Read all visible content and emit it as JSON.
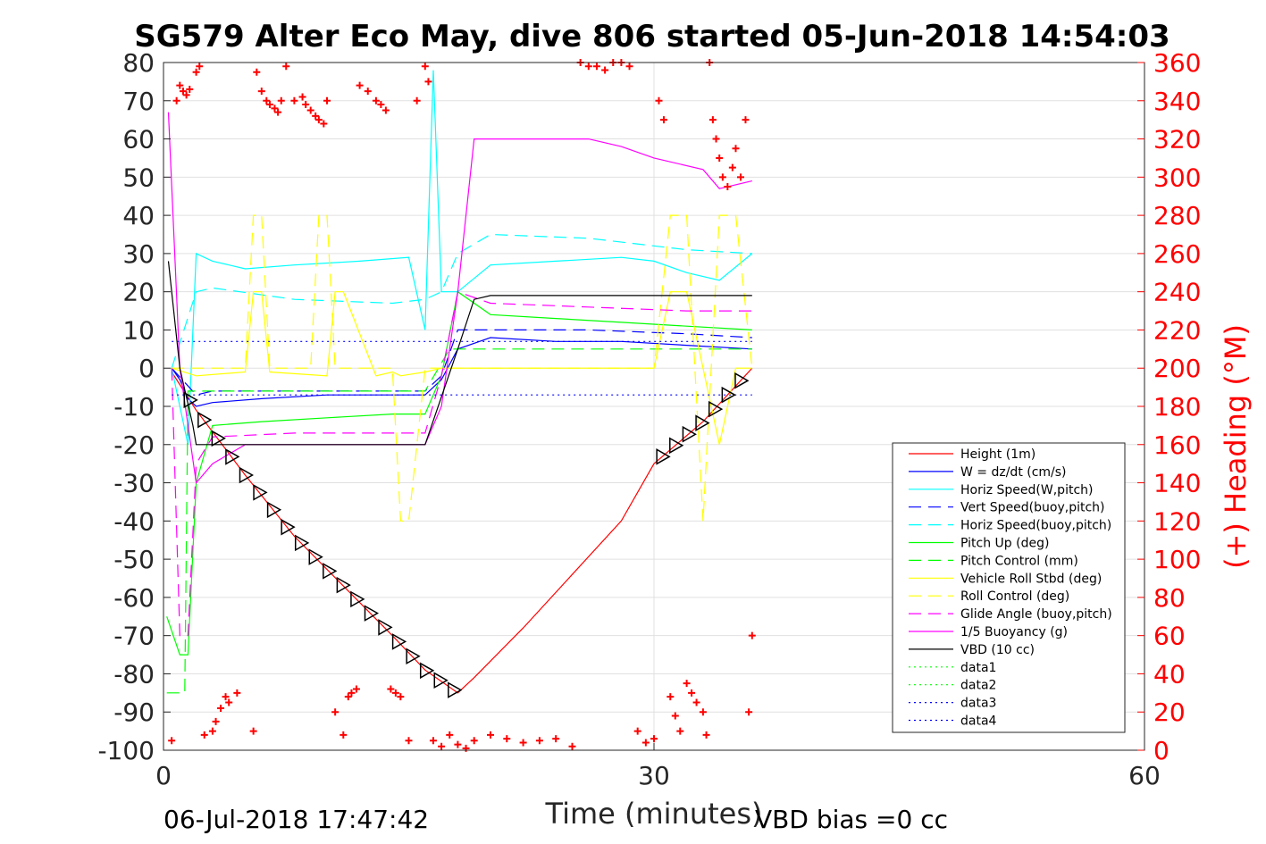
{
  "chart_data": {
    "type": "line",
    "title": "SG579 Alter Eco May, dive 806 started 05-Jun-2018 14:54:03",
    "xlabel": "Time (minutes)",
    "ylabel_right": "(+) Heading (°M)",
    "xlim": [
      0,
      60
    ],
    "ylim": [
      -100,
      80
    ],
    "ylim_right": [
      0,
      360
    ],
    "x_ticks": [
      "0",
      "30",
      "60"
    ],
    "y_ticks": [
      "80",
      "70",
      "60",
      "50",
      "40",
      "30",
      "20",
      "10",
      "0",
      "-10",
      "-20",
      "-30",
      "-40",
      "-50",
      "-60",
      "-70",
      "-80",
      "-90",
      "-100"
    ],
    "y_ticks_right": [
      "360",
      "340",
      "320",
      "300",
      "280",
      "260",
      "240",
      "220",
      "200",
      "180",
      "160",
      "140",
      "120",
      "100",
      "80",
      "60",
      "40",
      "20",
      "0"
    ],
    "grid": true,
    "legend_position": "lower-right",
    "footer_left": "06-Jul-2018 17:47:42",
    "footer_right": "VBD bias =0 cc",
    "series": [
      {
        "name": "Height (1m)",
        "color": "#ff0000",
        "style": "solid",
        "x": [
          0.5,
          2,
          5,
          8,
          11,
          14,
          16,
          18,
          19,
          22,
          25,
          28,
          30,
          33,
          36
        ],
        "y": [
          -1,
          -11,
          -28,
          -44,
          -57,
          -70,
          -79,
          -85,
          -81,
          -68,
          -54,
          -40,
          -25,
          -14,
          0
        ]
      },
      {
        "name": "W = dz/dt (cm/s)",
        "color": "#0000ff",
        "style": "solid",
        "x": [
          0.5,
          1,
          1.5,
          2,
          3,
          6,
          10,
          14,
          16,
          17,
          18,
          20,
          24,
          28,
          32,
          36
        ],
        "y": [
          0,
          -3,
          -8,
          -10,
          -9,
          -8,
          -7,
          -7,
          -7,
          -3,
          5,
          8,
          7,
          7,
          6,
          5
        ]
      },
      {
        "name": "Horiz Speed(W,pitch)",
        "color": "#00ffff",
        "style": "solid",
        "x": [
          0.5,
          1.5,
          2,
          3,
          5,
          8,
          12,
          15,
          16,
          16.5,
          17,
          18,
          20,
          24,
          28,
          30,
          32,
          34,
          36
        ],
        "y": [
          0,
          -20,
          30,
          28,
          26,
          27,
          28,
          29,
          10,
          78,
          20,
          20,
          27,
          28,
          29,
          28,
          25,
          23,
          30
        ]
      },
      {
        "name": "Vert Speed(buoy,pitch)",
        "color": "#0000ff",
        "style": "dash",
        "x": [
          0.5,
          2,
          3,
          8,
          14,
          16,
          17,
          18,
          20,
          26,
          32,
          36
        ],
        "y": [
          0,
          -7,
          -6,
          -6,
          -6,
          -6,
          -2,
          10,
          10,
          10,
          9,
          8
        ]
      },
      {
        "name": "Horiz Speed(buoy,pitch)",
        "color": "#00ffff",
        "style": "dash",
        "x": [
          0.5,
          2,
          3,
          8,
          14,
          16,
          17,
          18,
          20,
          26,
          32,
          36
        ],
        "y": [
          0,
          20,
          21,
          18,
          17,
          18,
          20,
          30,
          35,
          34,
          31,
          30
        ]
      },
      {
        "name": "Pitch Up (deg)",
        "color": "#00ff00",
        "style": "solid",
        "x": [
          0.2,
          1,
          1.5,
          2,
          3,
          6,
          10,
          14,
          16,
          17,
          18,
          20,
          24,
          28,
          32,
          36
        ],
        "y": [
          -65,
          -75,
          -75,
          -30,
          -15,
          -14,
          -13,
          -12,
          -12,
          -2,
          20,
          14,
          13,
          12,
          11,
          10
        ]
      },
      {
        "name": "Pitch Control (mm)",
        "color": "#00ff00",
        "style": "dash",
        "x": [
          0.2,
          1.3,
          1.5,
          2,
          16,
          17.5,
          18,
          36
        ],
        "y": [
          -85,
          -85,
          -6,
          -6,
          -6,
          5,
          5,
          5
        ]
      },
      {
        "name": "Vehicle Roll Stbd (deg)",
        "color": "#ffff00",
        "style": "solid",
        "x": [
          0.5,
          2,
          5,
          5.5,
          6,
          6.5,
          10,
          10.5,
          11,
          13,
          14,
          14.5,
          16,
          17,
          18,
          30,
          31,
          32,
          33,
          34,
          35,
          36
        ],
        "y": [
          0,
          -2,
          -1,
          20,
          20,
          -1,
          -2,
          20,
          20,
          -2,
          -1,
          -2,
          -1,
          0,
          0,
          0,
          20,
          20,
          0,
          -20,
          0,
          0
        ]
      },
      {
        "name": "Roll Control (deg)",
        "color": "#ffff00",
        "style": "dash",
        "x": [
          0.5,
          2,
          5,
          5.5,
          6,
          6.5,
          9,
          9.5,
          10,
          10.5,
          14,
          14.5,
          15,
          16,
          17,
          18,
          30,
          31,
          32,
          33,
          34,
          35,
          36
        ],
        "y": [
          0,
          0,
          0,
          40,
          40,
          0,
          0,
          40,
          40,
          0,
          0,
          -40,
          -40,
          0,
          0,
          0,
          0,
          40,
          40,
          -40,
          40,
          40,
          0
        ]
      },
      {
        "name": "Glide Angle (buoy,pitch)",
        "color": "#ff00ff",
        "style": "dash",
        "x": [
          0.5,
          1,
          1.5,
          2,
          3,
          8,
          14,
          16,
          17,
          18,
          20,
          26,
          32,
          36
        ],
        "y": [
          0,
          -70,
          -70,
          -25,
          -18,
          -17,
          -17,
          -17,
          -2,
          20,
          17,
          16,
          15,
          15
        ]
      },
      {
        "name": "1/5 Buoyancy (g)",
        "color": "#ff00ff",
        "style": "solid",
        "x": [
          0.3,
          1,
          2,
          3,
          5,
          10,
          16,
          17,
          18,
          19,
          20,
          26,
          28,
          30,
          33,
          34,
          36
        ],
        "y": [
          67,
          0,
          -30,
          -25,
          -20,
          -20,
          -20,
          -10,
          20,
          60,
          60,
          60,
          58,
          55,
          52,
          47,
          49
        ]
      },
      {
        "name": "VBD (10 cc)",
        "color": "#000000",
        "style": "solid",
        "x": [
          0.3,
          1,
          1.8,
          2,
          16,
          18,
          19,
          20,
          36
        ],
        "y": [
          28,
          0,
          -15,
          -20,
          -20,
          5,
          18,
          19,
          19
        ]
      },
      {
        "name": "data1",
        "color": "#00ff00",
        "style": "dot",
        "x": [],
        "y": []
      },
      {
        "name": "data2",
        "color": "#00ff00",
        "style": "dot",
        "x": [],
        "y": []
      },
      {
        "name": "data3",
        "color": "#0000ff",
        "style": "dot",
        "x": [
          0.5,
          36
        ],
        "y": [
          7,
          7
        ]
      },
      {
        "name": "data4",
        "color": "#0000ff",
        "style": "dot",
        "x": [
          0.5,
          36
        ],
        "y": [
          -7,
          -7
        ]
      }
    ],
    "heading_points": {
      "color": "#ff0000",
      "marker": "+",
      "axis": "right",
      "x": [
        0.5,
        0.8,
        1.0,
        1.2,
        1.4,
        1.6,
        2.0,
        2.2,
        2.5,
        3.0,
        3.2,
        3.5,
        3.8,
        4.0,
        4.5,
        5.5,
        5.7,
        6.0,
        6.3,
        6.5,
        6.8,
        7.0,
        7.2,
        7.5,
        8.0,
        8.5,
        8.7,
        9.0,
        9.3,
        9.5,
        9.8,
        10.0,
        10.5,
        11.0,
        11.3,
        11.5,
        11.8,
        12.0,
        12.5,
        13.0,
        13.3,
        13.6,
        13.9,
        14.2,
        14.5,
        15.0,
        15.5,
        16.0,
        16.2,
        16.5,
        17.0,
        17.5,
        18.0,
        18.5,
        19.0,
        20.0,
        21.0,
        22.0,
        23.0,
        24.0,
        25.0,
        25.5,
        26.0,
        26.5,
        27.0,
        27.5,
        28.0,
        28.5,
        29.0,
        29.5,
        30.0,
        30.3,
        30.6,
        31.0,
        31.3,
        31.6,
        32.0,
        32.3,
        32.6,
        33.0,
        33.2,
        33.4,
        33.6,
        33.8,
        34.0,
        34.2,
        34.5,
        34.8,
        35.0,
        35.3,
        35.6,
        35.8,
        36.0
      ],
      "y": [
        5,
        340,
        348,
        345,
        343,
        346,
        355,
        358,
        8,
        10,
        15,
        22,
        28,
        25,
        30,
        10,
        355,
        345,
        340,
        338,
        336,
        334,
        340,
        358,
        340,
        342,
        338,
        335,
        332,
        330,
        328,
        340,
        20,
        8,
        28,
        30,
        32,
        348,
        345,
        340,
        338,
        335,
        32,
        30,
        28,
        5,
        340,
        358,
        350,
        5,
        2,
        8,
        3,
        1,
        5,
        8,
        6,
        4,
        5,
        6,
        2,
        360,
        358,
        358,
        356,
        360,
        360,
        358,
        10,
        4,
        6,
        340,
        330,
        28,
        18,
        10,
        35,
        30,
        25,
        20,
        8,
        360,
        330,
        320,
        310,
        300,
        295,
        305,
        315,
        300,
        330,
        20,
        60
      ]
    }
  }
}
